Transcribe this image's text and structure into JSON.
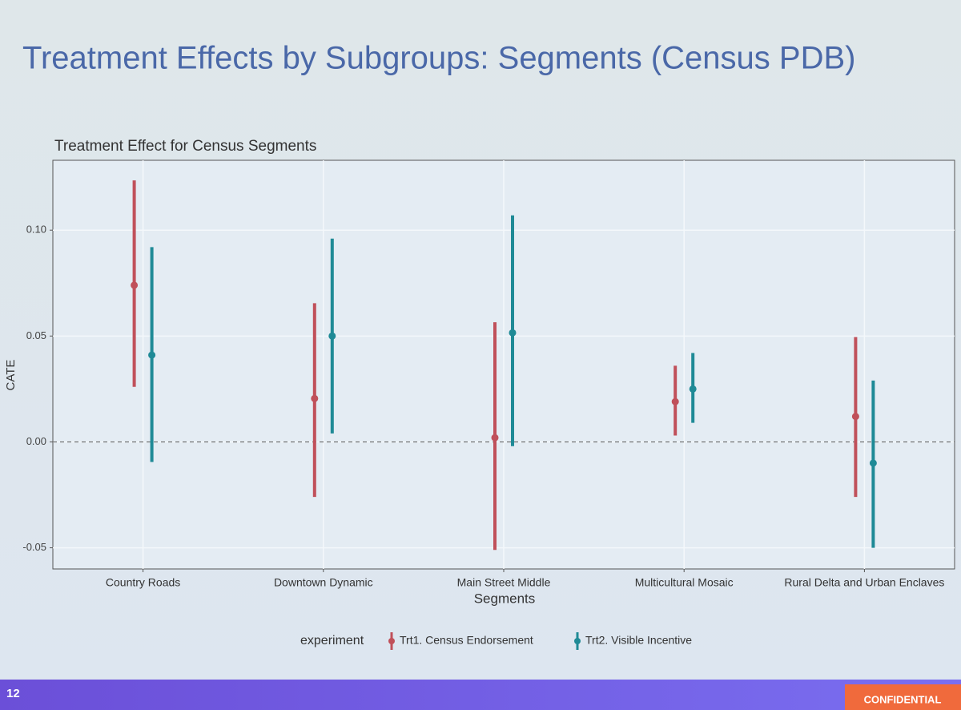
{
  "slide": {
    "title": "Treatment Effects by Subgroups: Segments (Census PDB)",
    "page_number": "12",
    "footer": "CONFIDENTIAL"
  },
  "chart_data": {
    "type": "pointrange",
    "title": "Treatment Effect for Census Segments",
    "x_label": "Segments",
    "y_label": "CATE",
    "categories": [
      "Country Roads",
      "Downtown Dynamic",
      "Main Street Middle",
      "Multicultural Mosaic",
      "Rural Delta and Urban Enclaves"
    ],
    "series": [
      {
        "name": "Trt1. Census Endorsement",
        "color": "#c0505a",
        "values": [
          0.074,
          0.0205,
          0.002,
          0.019,
          0.012
        ],
        "lower": [
          0.026,
          -0.026,
          -0.051,
          0.003,
          -0.026
        ],
        "upper": [
          0.1235,
          0.0655,
          0.0565,
          0.036,
          0.0495
        ]
      },
      {
        "name": "Trt2. Visible Incentive",
        "color": "#1f8a96",
        "values": [
          0.041,
          0.05,
          0.0515,
          0.025,
          -0.01
        ],
        "lower": [
          -0.0095,
          0.004,
          -0.002,
          0.009,
          -0.05
        ],
        "upper": [
          0.092,
          0.096,
          0.107,
          0.042,
          0.029
        ]
      }
    ],
    "legend_title": "experiment",
    "legend_position": "bottom",
    "reference_line": 0,
    "ylim": [
      -0.06,
      0.133
    ],
    "yticks": [
      {
        "value": -0.05,
        "label": "-0.05"
      },
      {
        "value": 0,
        "label": "0.00"
      },
      {
        "value": 0.05,
        "label": "0.05"
      },
      {
        "value": 0.1,
        "label": "0.10"
      }
    ],
    "grid": true
  }
}
